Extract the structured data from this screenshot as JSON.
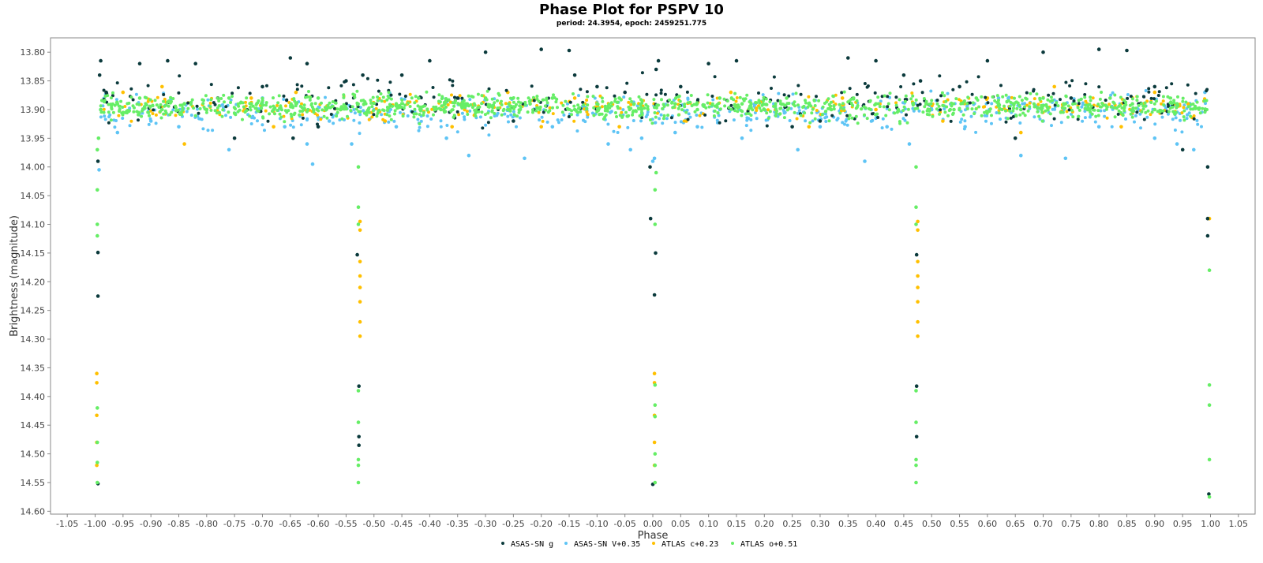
{
  "chart_data": {
    "type": "scatter",
    "title": "Phase Plot for PSPV 10",
    "subtitle": "period: 24.3954, epoch: 2459251.775",
    "xlabel": "Phase",
    "ylabel": "Brightness (magnitude)",
    "xlim": [
      -1.08,
      1.08
    ],
    "ylim": [
      13.775,
      14.605
    ],
    "y_inverted": false,
    "x_ticks": [
      -1.05,
      -1.0,
      -0.95,
      -0.9,
      -0.85,
      -0.8,
      -0.75,
      -0.7,
      -0.65,
      -0.6,
      -0.55,
      -0.5,
      -0.45,
      -0.4,
      -0.35,
      -0.3,
      -0.25,
      -0.2,
      -0.15,
      -0.1,
      -0.05,
      0.0,
      0.05,
      0.1,
      0.15,
      0.2,
      0.25,
      0.3,
      0.35,
      0.4,
      0.45,
      0.5,
      0.55,
      0.6,
      0.65,
      0.7,
      0.75,
      0.8,
      0.85,
      0.9,
      0.95,
      1.0,
      1.05
    ],
    "y_ticks": [
      13.8,
      13.85,
      13.9,
      13.95,
      14.0,
      14.05,
      14.1,
      14.15,
      14.2,
      14.25,
      14.3,
      14.35,
      14.4,
      14.45,
      14.5,
      14.55,
      14.6
    ],
    "grid": false,
    "legend_position": "bottom",
    "series": [
      {
        "name": "ASAS-SN g",
        "color": "#0b3a3c",
        "x": [
          -0.995,
          -0.995,
          -0.995,
          -0.995,
          -0.992,
          -0.99,
          -0.98,
          -0.92,
          -0.87,
          -0.82,
          -0.78,
          -0.75,
          -0.7,
          -0.65,
          -0.645,
          -0.62,
          -0.6,
          -0.55,
          -0.53,
          -0.527,
          -0.527,
          -0.527,
          -0.52,
          -0.45,
          -0.4,
          -0.35,
          -0.3,
          -0.25,
          -0.2,
          -0.15,
          -0.14,
          -0.1,
          -0.05,
          -0.005,
          -0.004,
          0.0,
          0.003,
          0.005,
          0.006,
          0.01,
          0.05,
          0.1,
          0.15,
          0.2,
          0.25,
          0.3,
          0.35,
          0.4,
          0.45,
          0.473,
          0.473,
          0.473,
          0.48,
          0.55,
          0.6,
          0.65,
          0.7,
          0.75,
          0.8,
          0.85,
          0.9,
          0.95,
          0.995,
          0.995,
          0.995,
          0.997
        ],
        "y": [
          14.552,
          14.225,
          14.149,
          13.99,
          13.84,
          13.815,
          13.87,
          13.82,
          13.815,
          13.82,
          13.88,
          13.95,
          13.86,
          13.81,
          13.95,
          13.82,
          13.93,
          13.85,
          14.153,
          14.382,
          14.47,
          14.485,
          13.84,
          13.84,
          13.815,
          13.88,
          13.8,
          13.92,
          13.795,
          13.797,
          13.84,
          13.86,
          13.87,
          14.0,
          14.09,
          14.553,
          14.223,
          14.15,
          13.83,
          13.815,
          13.86,
          13.82,
          13.815,
          13.88,
          13.93,
          13.92,
          13.81,
          13.815,
          13.84,
          14.153,
          14.382,
          14.47,
          13.85,
          13.86,
          13.815,
          13.95,
          13.8,
          13.88,
          13.795,
          13.797,
          13.86,
          13.97,
          14.0,
          14.09,
          14.12,
          14.57
        ]
      },
      {
        "name": "ASAS-SN V+0.35",
        "color": "#5ec4f5",
        "x": [
          -0.993,
          -0.99,
          -0.96,
          -0.9,
          -0.85,
          -0.8,
          -0.76,
          -0.7,
          -0.66,
          -0.62,
          -0.61,
          -0.58,
          -0.54,
          -0.5,
          -0.46,
          -0.42,
          -0.37,
          -0.33,
          -0.28,
          -0.23,
          -0.18,
          -0.12,
          -0.08,
          -0.04,
          -0.02,
          0.0,
          0.003,
          0.04,
          0.08,
          0.12,
          0.16,
          0.22,
          0.26,
          0.3,
          0.34,
          0.38,
          0.42,
          0.46,
          0.5,
          0.56,
          0.62,
          0.66,
          0.7,
          0.74,
          0.8,
          0.86,
          0.9,
          0.94,
          0.97,
          0.99
        ],
        "y": [
          14.005,
          13.9,
          13.94,
          13.92,
          13.93,
          13.9,
          13.97,
          13.88,
          13.93,
          13.96,
          13.995,
          13.92,
          13.96,
          13.9,
          13.93,
          13.88,
          13.95,
          13.98,
          13.91,
          13.985,
          13.93,
          13.9,
          13.96,
          13.97,
          13.95,
          13.99,
          13.985,
          13.94,
          13.93,
          13.9,
          13.95,
          13.91,
          13.97,
          13.93,
          13.9,
          13.99,
          13.93,
          13.96,
          13.9,
          13.93,
          13.88,
          13.98,
          13.92,
          13.985,
          13.93,
          13.9,
          13.95,
          13.96,
          13.97,
          13.87
        ]
      },
      {
        "name": "ATLAS c+0.23",
        "color": "#ffc000",
        "x": [
          -0.997,
          -0.997,
          -0.997,
          -0.997,
          -0.997,
          -0.95,
          -0.88,
          -0.84,
          -0.8,
          -0.72,
          -0.68,
          -0.64,
          -0.56,
          -0.525,
          -0.525,
          -0.525,
          -0.525,
          -0.525,
          -0.525,
          -0.525,
          -0.525,
          -0.48,
          -0.44,
          -0.36,
          -0.32,
          -0.26,
          -0.2,
          -0.14,
          -0.1,
          -0.06,
          0.003,
          0.003,
          0.003,
          0.003,
          0.003,
          0.06,
          0.14,
          0.22,
          0.28,
          0.34,
          0.4,
          0.475,
          0.475,
          0.475,
          0.475,
          0.475,
          0.475,
          0.475,
          0.475,
          0.52,
          0.6,
          0.66,
          0.72,
          0.78,
          0.84,
          0.9,
          0.96,
          0.998
        ],
        "y": [
          14.36,
          14.376,
          14.433,
          14.48,
          14.52,
          13.87,
          13.86,
          13.96,
          13.9,
          13.88,
          13.93,
          13.87,
          13.9,
          14.095,
          14.11,
          14.165,
          14.19,
          14.21,
          14.235,
          14.27,
          14.295,
          13.92,
          13.89,
          13.93,
          13.91,
          13.87,
          13.93,
          13.88,
          13.9,
          13.93,
          14.36,
          14.376,
          14.433,
          14.48,
          14.52,
          13.92,
          13.87,
          13.9,
          13.93,
          13.88,
          13.9,
          14.095,
          14.11,
          14.165,
          14.19,
          14.21,
          14.235,
          14.27,
          14.295,
          13.92,
          13.88,
          13.94,
          13.86,
          13.9,
          13.93,
          13.87,
          13.89,
          14.09
        ]
      },
      {
        "name": "ATLAS o+0.51",
        "color": "#66ee66",
        "x": [
          -0.996,
          -0.996,
          -0.996,
          -0.996,
          -0.996,
          -0.996,
          -0.996,
          -0.996,
          -0.994,
          -0.99,
          -0.96,
          -0.92,
          -0.88,
          -0.84,
          -0.8,
          -0.76,
          -0.72,
          -0.68,
          -0.64,
          -0.6,
          -0.56,
          -0.528,
          -0.528,
          -0.528,
          -0.528,
          -0.528,
          -0.528,
          -0.528,
          -0.528,
          -0.51,
          -0.46,
          -0.42,
          -0.38,
          -0.34,
          -0.3,
          -0.26,
          -0.22,
          -0.18,
          -0.14,
          -0.1,
          -0.06,
          -0.02,
          0.004,
          0.004,
          0.004,
          0.004,
          0.004,
          0.004,
          0.004,
          0.004,
          0.006,
          0.04,
          0.08,
          0.12,
          0.16,
          0.2,
          0.24,
          0.28,
          0.32,
          0.36,
          0.4,
          0.44,
          0.472,
          0.472,
          0.472,
          0.472,
          0.472,
          0.472,
          0.472,
          0.472,
          0.49,
          0.54,
          0.58,
          0.62,
          0.66,
          0.7,
          0.74,
          0.78,
          0.82,
          0.86,
          0.9,
          0.94,
          0.998,
          0.998,
          0.998,
          0.998,
          0.998
        ],
        "y": [
          13.97,
          14.04,
          14.1,
          14.12,
          14.42,
          14.48,
          14.515,
          14.55,
          13.95,
          13.9,
          13.89,
          13.88,
          13.9,
          13.89,
          13.9,
          13.88,
          13.89,
          13.9,
          13.89,
          13.88,
          13.9,
          14.0,
          14.07,
          14.1,
          14.39,
          14.445,
          14.51,
          14.52,
          14.55,
          13.9,
          13.89,
          13.88,
          13.9,
          13.89,
          13.88,
          13.9,
          13.89,
          13.88,
          13.9,
          13.89,
          13.88,
          13.9,
          14.04,
          14.1,
          14.38,
          14.415,
          14.435,
          14.5,
          14.52,
          14.55,
          14.01,
          13.89,
          13.9,
          13.88,
          13.89,
          13.9,
          13.88,
          13.89,
          13.9,
          13.88,
          13.89,
          13.9,
          14.0,
          14.07,
          14.1,
          14.39,
          14.445,
          14.51,
          14.52,
          14.55,
          13.89,
          13.9,
          13.88,
          13.89,
          13.9,
          13.88,
          13.89,
          13.9,
          13.88,
          13.89,
          13.9,
          13.89,
          14.18,
          14.38,
          14.415,
          14.51,
          14.575
        ]
      }
    ]
  }
}
